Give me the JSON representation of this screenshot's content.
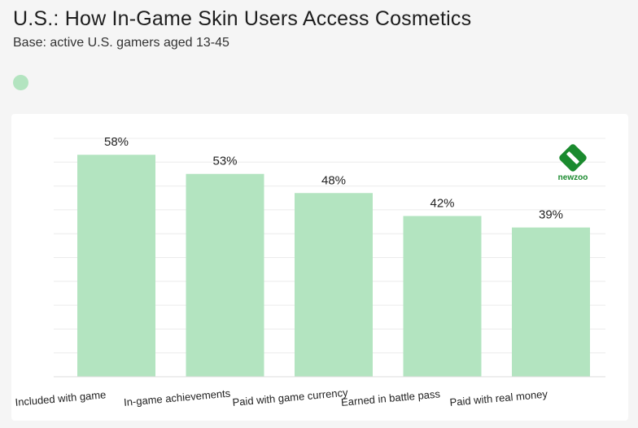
{
  "header": {
    "title": "U.S.: How In-Game Skin Users Access Cosmetics",
    "subtitle": "Base: active U.S. gamers aged 13-45"
  },
  "logo": {
    "text": "newzoo"
  },
  "colors": {
    "bar": "#b3e4c0",
    "grid": "#ececec",
    "logo": "#1a8a2e"
  },
  "chart_data": {
    "type": "bar",
    "title": "U.S.: How In-Game Skin Users Access Cosmetics",
    "subtitle": "Base: active U.S. gamers aged 13-45",
    "categories": [
      "Included with game",
      "In-game achievements",
      "Paid with game currency",
      "Earned in battle pass",
      "Paid with real money"
    ],
    "values": [
      58,
      53,
      48,
      42,
      39
    ],
    "value_labels": [
      "58%",
      "53%",
      "48%",
      "42%",
      "39%"
    ],
    "unit": "%",
    "ylim": [
      0,
      60
    ],
    "grid": true,
    "legend": "top-left"
  }
}
